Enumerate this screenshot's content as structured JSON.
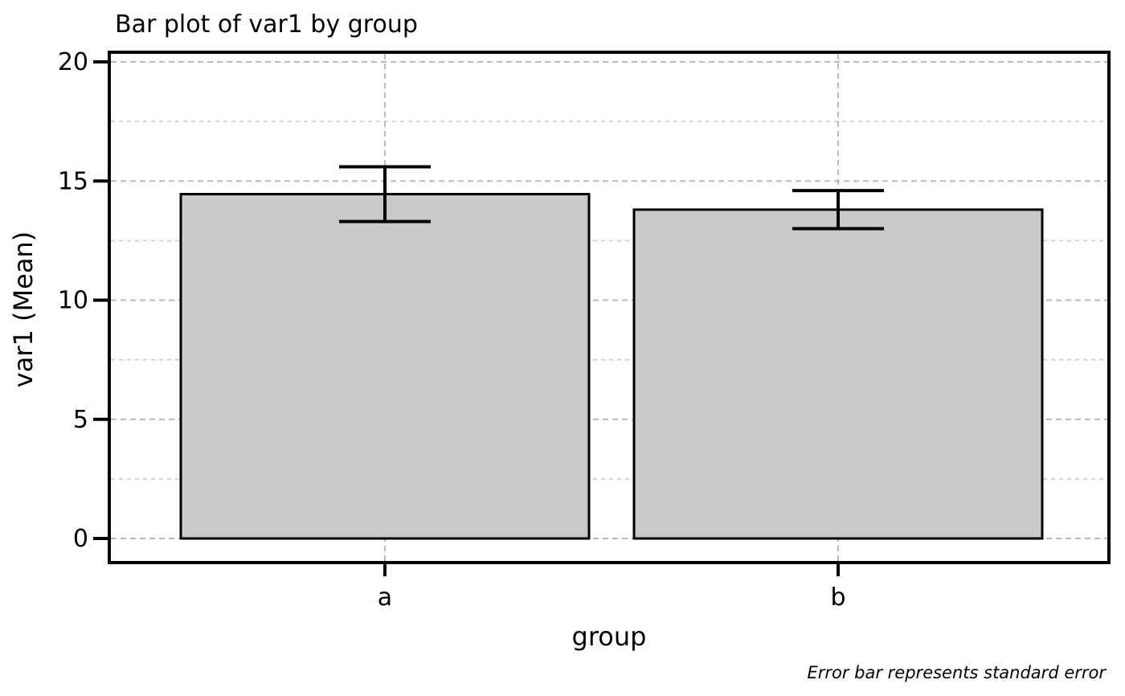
{
  "figure": {
    "title": "Bar plot of var1 by group",
    "footnote": "Error bar represents standard error"
  },
  "chart_data": {
    "type": "bar",
    "title": "Bar plot of var1 by group",
    "xlabel": "group",
    "ylabel": "var1 (Mean)",
    "categories": [
      "a",
      "b"
    ],
    "values": [
      14.45,
      13.8
    ],
    "error_bars": {
      "represents": "standard error",
      "values": [
        1.15,
        0.8
      ]
    },
    "ylim": [
      0,
      20
    ],
    "yticks": [
      0,
      5,
      10,
      15,
      20
    ],
    "minor_ytick_interval": 2.5,
    "grid": "dashed horizontal major+minor; dashed vertical at category centers",
    "legend_position": "none",
    "annotation": "Error bar represents standard error",
    "colors": {
      "bar_fill": "#c9c9c9",
      "bar_edge": "#000000",
      "grid_major": "#b8b8b8",
      "grid_minor": "#d2d2d2",
      "axis": "#000000",
      "background": "#ffffff"
    }
  }
}
